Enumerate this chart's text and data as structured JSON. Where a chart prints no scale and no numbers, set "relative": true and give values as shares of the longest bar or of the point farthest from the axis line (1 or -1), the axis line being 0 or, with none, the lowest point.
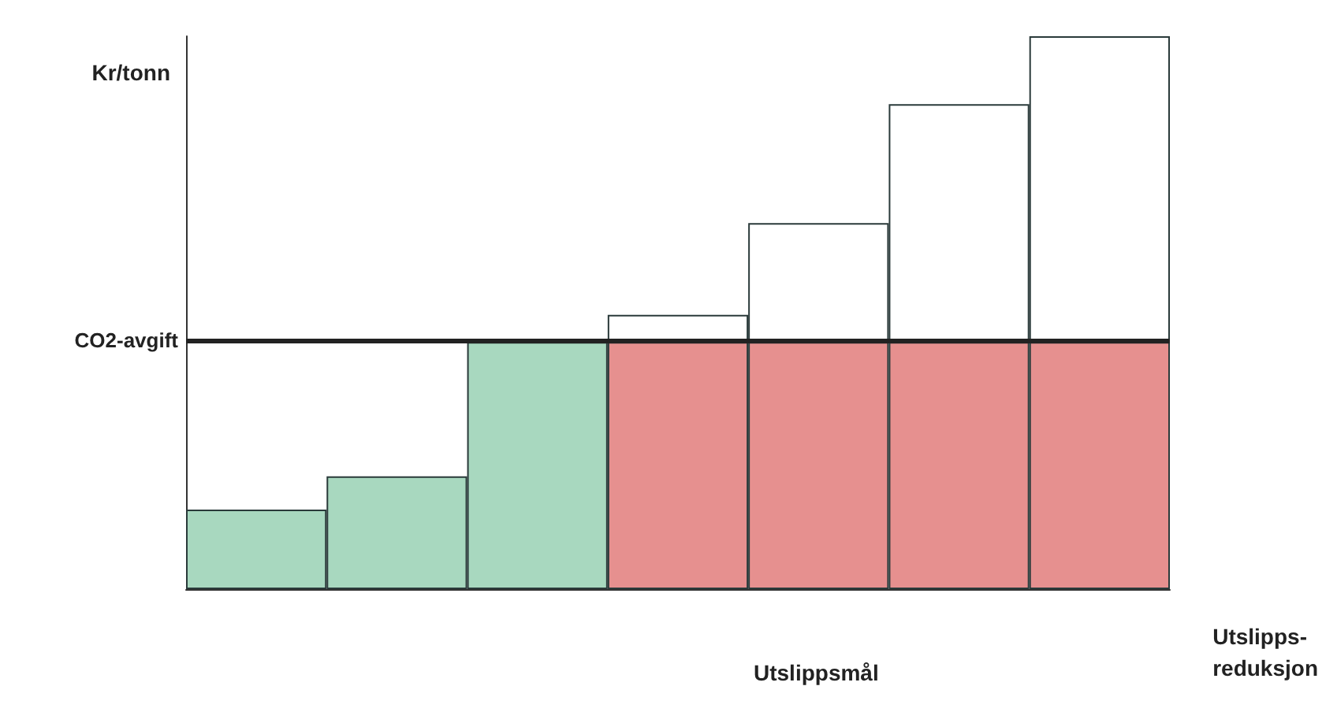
{
  "chart_data": {
    "type": "bar",
    "stacked": true,
    "relative": true,
    "ylabel": "Kr/tonn",
    "xlabel": "Utslipps-reduksjon",
    "categories": [
      null,
      null,
      null,
      null,
      null,
      null,
      null
    ],
    "series": [
      {
        "colors": [
          "#a8d8bf",
          "#a8d8bf",
          "#a8d8bf",
          "#e6908f",
          "#e6908f",
          "#e6908f",
          "#e6908f"
        ],
        "values": [
          0.144,
          0.204,
          0.447,
          0.447,
          0.447,
          0.447,
          0.447
        ]
      },
      {
        "color": "#ffffff",
        "values": [
          0,
          0,
          0,
          0.049,
          0.215,
          0.43,
          0.553
        ]
      }
    ],
    "ref_lines": [
      {
        "axis": "y",
        "value": 0.447,
        "label": "CO2-avgift",
        "color": "#222222"
      }
    ],
    "annotations": [
      "Utslippsmål"
    ],
    "grid": false
  }
}
